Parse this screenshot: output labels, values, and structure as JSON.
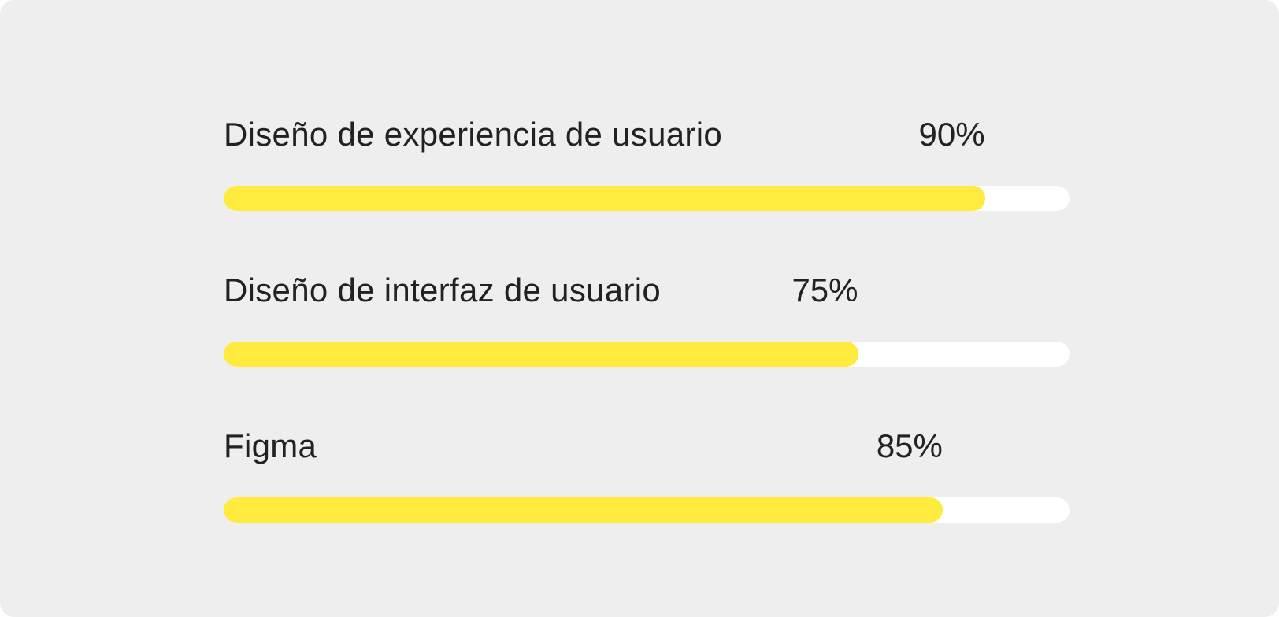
{
  "colors": {
    "background": "#eeeeee",
    "track": "#ffffff",
    "fill": "#ffea3e",
    "text": "#222222"
  },
  "skills": [
    {
      "label": "Diseño de experiencia de usuario",
      "percent_text": "90%",
      "value": 0.9
    },
    {
      "label": "Diseño de interfaz de usuario",
      "percent_text": "75%",
      "value": 0.75
    },
    {
      "label": "Figma",
      "percent_text": "85%",
      "value": 0.85
    }
  ]
}
